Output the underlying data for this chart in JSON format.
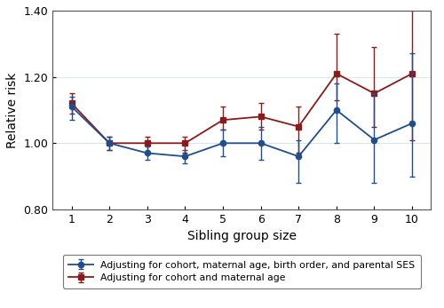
{
  "x": [
    1,
    2,
    3,
    4,
    5,
    6,
    7,
    8,
    9,
    10
  ],
  "blue_y": [
    1.11,
    1.0,
    0.97,
    0.96,
    1.0,
    1.0,
    0.96,
    1.1,
    1.01,
    1.06
  ],
  "blue_ylo": [
    1.07,
    0.98,
    0.95,
    0.94,
    0.96,
    0.95,
    0.88,
    1.0,
    0.88,
    0.9
  ],
  "blue_yhi": [
    1.14,
    1.02,
    0.99,
    0.98,
    1.04,
    1.05,
    1.01,
    1.18,
    1.15,
    1.27
  ],
  "red_y": [
    1.12,
    1.0,
    1.0,
    1.0,
    1.07,
    1.08,
    1.05,
    1.21,
    1.15,
    1.21
  ],
  "red_ylo": [
    1.09,
    0.98,
    0.97,
    0.97,
    1.04,
    1.04,
    0.97,
    1.13,
    1.05,
    1.01
  ],
  "red_yhi": [
    1.15,
    1.02,
    1.02,
    1.02,
    1.11,
    1.12,
    1.11,
    1.33,
    1.29,
    1.45
  ],
  "blue_color": "#1F4E8C",
  "red_color": "#8B1A1A",
  "blue_label": "Adjusting for cohort, maternal age, birth order, and parental SES",
  "red_label": "Adjusting for cohort and maternal age",
  "xlabel": "Sibling group size",
  "ylabel": "Relative risk",
  "ylim": [
    0.8,
    1.4
  ],
  "yticks": [
    0.8,
    1.0,
    1.2,
    1.4
  ],
  "xlim": [
    0.5,
    10.5
  ],
  "xticks": [
    1,
    2,
    3,
    4,
    5,
    6,
    7,
    8,
    9,
    10
  ],
  "bg_color": "#FFFFFF",
  "grid_color": "#D8E8E8",
  "spine_color": "#555555"
}
